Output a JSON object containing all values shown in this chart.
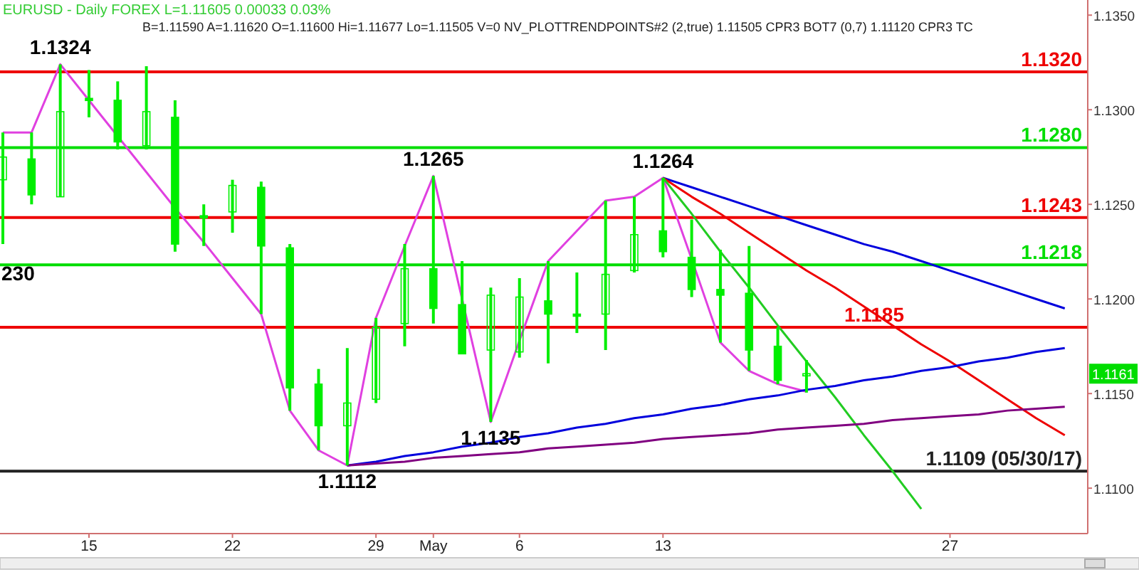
{
  "chart_data": {
    "type": "candlestick",
    "title": "EURUSD - Daily  FOREX  L=1.11605  0.00033  0.03%",
    "subtitle": "B=1.11590  A=1.11620  O=1.11600  Hi=1.11677  Lo=1.11505  V=0  NV_PLOTTRENDPOINTS#2 (2,true)  1.11505  CPR3 BOT7 (0,7)  1.11120  CPR3 TC",
    "categories": [
      null,
      null,
      null,
      "15",
      null,
      null,
      null,
      null,
      "22",
      null,
      null,
      null,
      null,
      "29",
      null,
      "May",
      null,
      null,
      "6",
      null,
      null,
      null,
      null,
      "13",
      null,
      null,
      null,
      null,
      null,
      null,
      null,
      null,
      null,
      "27",
      null,
      null,
      null,
      null
    ],
    "ylim": [
      1.1076,
      1.1358
    ],
    "yticks": [
      {
        "value": 1.11,
        "label": "1.1100"
      },
      {
        "value": 1.115,
        "label": "1.1150"
      },
      {
        "value": 1.12,
        "label": "1.1200"
      },
      {
        "value": 1.125,
        "label": "1.1250"
      },
      {
        "value": 1.13,
        "label": "1.1300"
      },
      {
        "value": 1.135,
        "label": "1.1350"
      }
    ],
    "series": [
      {
        "type": "candlestick",
        "color": "#00ee00",
        "ohlc": [
          [
            1.1263,
            1.1288,
            1.1229,
            1.1275
          ],
          [
            1.1274,
            1.1288,
            1.125,
            1.1255
          ],
          [
            1.1254,
            1.1324,
            1.1254,
            1.1299
          ],
          [
            1.1306,
            1.1321,
            1.1296,
            1.1305
          ],
          [
            1.1305,
            1.1315,
            1.1279,
            1.1283
          ],
          [
            1.1281,
            1.1323,
            1.1279,
            1.1299
          ],
          [
            1.1296,
            1.1305,
            1.1225,
            1.1229
          ],
          [
            1.1244,
            1.125,
            1.1228,
            1.1244
          ],
          [
            1.1246,
            1.1263,
            1.1235,
            1.126
          ],
          [
            1.1259,
            1.1262,
            1.1192,
            1.1228
          ],
          [
            1.1227,
            1.1229,
            1.1141,
            1.1153
          ],
          [
            1.1155,
            1.1163,
            1.112,
            1.1133
          ],
          [
            1.1133,
            1.1174,
            1.1112,
            1.1145
          ],
          [
            1.1147,
            1.119,
            1.1145,
            1.1185
          ],
          [
            1.1187,
            1.1229,
            1.1175,
            1.1216
          ],
          [
            1.1216,
            1.1265,
            1.1187,
            1.1195
          ],
          [
            1.1197,
            1.122,
            1.1171,
            1.1171
          ],
          [
            1.1173,
            1.1206,
            1.1135,
            1.1202
          ],
          [
            1.1172,
            1.1211,
            1.1169,
            1.1201
          ],
          [
            1.1199,
            1.122,
            1.1166,
            1.1192
          ],
          [
            1.1192,
            1.1214,
            1.1182,
            1.1191
          ],
          [
            1.1192,
            1.1252,
            1.1173,
            1.1213
          ],
          [
            1.1215,
            1.1254,
            1.1214,
            1.1234
          ],
          [
            1.1236,
            1.1264,
            1.1222,
            1.1225
          ],
          [
            1.1222,
            1.1242,
            1.1201,
            1.1205
          ],
          [
            1.1205,
            1.1226,
            1.1177,
            1.1202
          ],
          [
            1.1203,
            1.1228,
            1.1162,
            1.1173
          ],
          [
            1.1175,
            1.1185,
            1.1155,
            1.1157
          ],
          [
            1.116,
            1.11677,
            1.11505,
            1.11605
          ],
          null,
          null,
          null,
          null,
          null,
          null,
          null,
          null,
          null
        ]
      },
      {
        "type": "line",
        "color": "#e040e0",
        "values": [
          1.1288,
          1.1288,
          1.1324,
          1.1305,
          1.1286,
          1.1267,
          1.1248,
          1.123,
          1.1211,
          1.1192,
          1.1141,
          1.112,
          1.1112,
          1.119,
          1.1228,
          1.1265,
          1.12,
          1.1135,
          1.1178,
          1.122,
          1.1236,
          1.1252,
          1.1254,
          1.1264,
          1.1221,
          1.1177,
          1.1162,
          1.1155,
          1.1151,
          null,
          null,
          null,
          null,
          null,
          null,
          null,
          null,
          null
        ]
      },
      {
        "type": "line",
        "color": "#0000dd",
        "values": [
          null,
          null,
          null,
          null,
          null,
          null,
          null,
          null,
          null,
          null,
          null,
          null,
          null,
          null,
          null,
          null,
          null,
          null,
          null,
          null,
          null,
          null,
          null,
          1.1264,
          1.1259,
          1.1254,
          1.1249,
          1.1244,
          1.1239,
          1.1234,
          1.1229,
          1.1225,
          1.122,
          1.1215,
          1.121,
          1.1205,
          1.12,
          1.1195
        ]
      },
      {
        "type": "line",
        "color": "#ee0000",
        "values": [
          null,
          null,
          null,
          null,
          null,
          null,
          null,
          null,
          null,
          null,
          null,
          null,
          null,
          null,
          null,
          null,
          null,
          null,
          null,
          null,
          null,
          null,
          null,
          1.1264,
          1.1254,
          1.1245,
          1.1235,
          1.1225,
          1.1215,
          1.1206,
          1.1196,
          1.1186,
          1.1176,
          1.1167,
          1.1157,
          1.1147,
          1.1137,
          1.1128
        ]
      },
      {
        "type": "line",
        "color": "#22cc22",
        "values": [
          null,
          null,
          null,
          null,
          null,
          null,
          null,
          null,
          null,
          null,
          null,
          null,
          null,
          null,
          null,
          null,
          null,
          null,
          null,
          null,
          null,
          null,
          null,
          1.1264,
          1.1245,
          1.1225,
          1.1206,
          1.1186,
          1.1167,
          1.1148,
          1.1128,
          1.1109,
          1.1089,
          null,
          null,
          null,
          null,
          null
        ]
      },
      {
        "type": "line",
        "color": "#0000dd",
        "values": [
          null,
          null,
          null,
          null,
          null,
          null,
          null,
          null,
          null,
          null,
          null,
          null,
          1.1112,
          1.1114,
          1.1117,
          1.1119,
          1.1122,
          1.1124,
          1.1127,
          1.1129,
          1.1132,
          1.1134,
          1.1137,
          1.1139,
          1.1142,
          1.1144,
          1.1147,
          1.1149,
          1.1152,
          1.1154,
          1.1157,
          1.1159,
          1.1162,
          1.1164,
          1.1167,
          1.1169,
          1.1172,
          1.1174
        ]
      },
      {
        "type": "line",
        "color": "#800080",
        "values": [
          null,
          null,
          null,
          null,
          null,
          null,
          null,
          null,
          null,
          null,
          null,
          null,
          1.1112,
          1.1113,
          1.1114,
          1.1116,
          1.1117,
          1.1118,
          1.1119,
          1.1121,
          1.1122,
          1.1123,
          1.1124,
          1.1126,
          1.1127,
          1.1128,
          1.1129,
          1.1131,
          1.1132,
          1.1133,
          1.1134,
          1.1136,
          1.1137,
          1.1138,
          1.1139,
          1.1141,
          1.1142,
          1.1143
        ]
      }
    ],
    "ref_lines": [
      {
        "axis": "y",
        "value": 1.132,
        "label": "1.1320",
        "color": "#ee0000"
      },
      {
        "axis": "y",
        "value": 1.128,
        "label": "1.1280",
        "color": "#00dd00"
      },
      {
        "axis": "y",
        "value": 1.1243,
        "label": "1.1243",
        "color": "#ee0000"
      },
      {
        "axis": "y",
        "value": 1.1218,
        "label": "1.1218",
        "color": "#00dd00"
      },
      {
        "axis": "y",
        "value": 1.1185,
        "label": "1.1185",
        "color": "#ee0000"
      },
      {
        "axis": "y",
        "value": 1.1109,
        "label": "1.1109 (05/30/17)",
        "color": "#222222"
      }
    ],
    "annotations": [
      {
        "text": "1.1324",
        "y": 1.1324
      },
      {
        "text": "1.1112",
        "y": 1.1112
      },
      {
        "text": "1.1265",
        "y": 1.1265
      },
      {
        "text": "1.1135",
        "y": 1.1135
      },
      {
        "text": "1.1264",
        "y": 1.1264
      },
      "230",
      "1.1161"
    ]
  }
}
